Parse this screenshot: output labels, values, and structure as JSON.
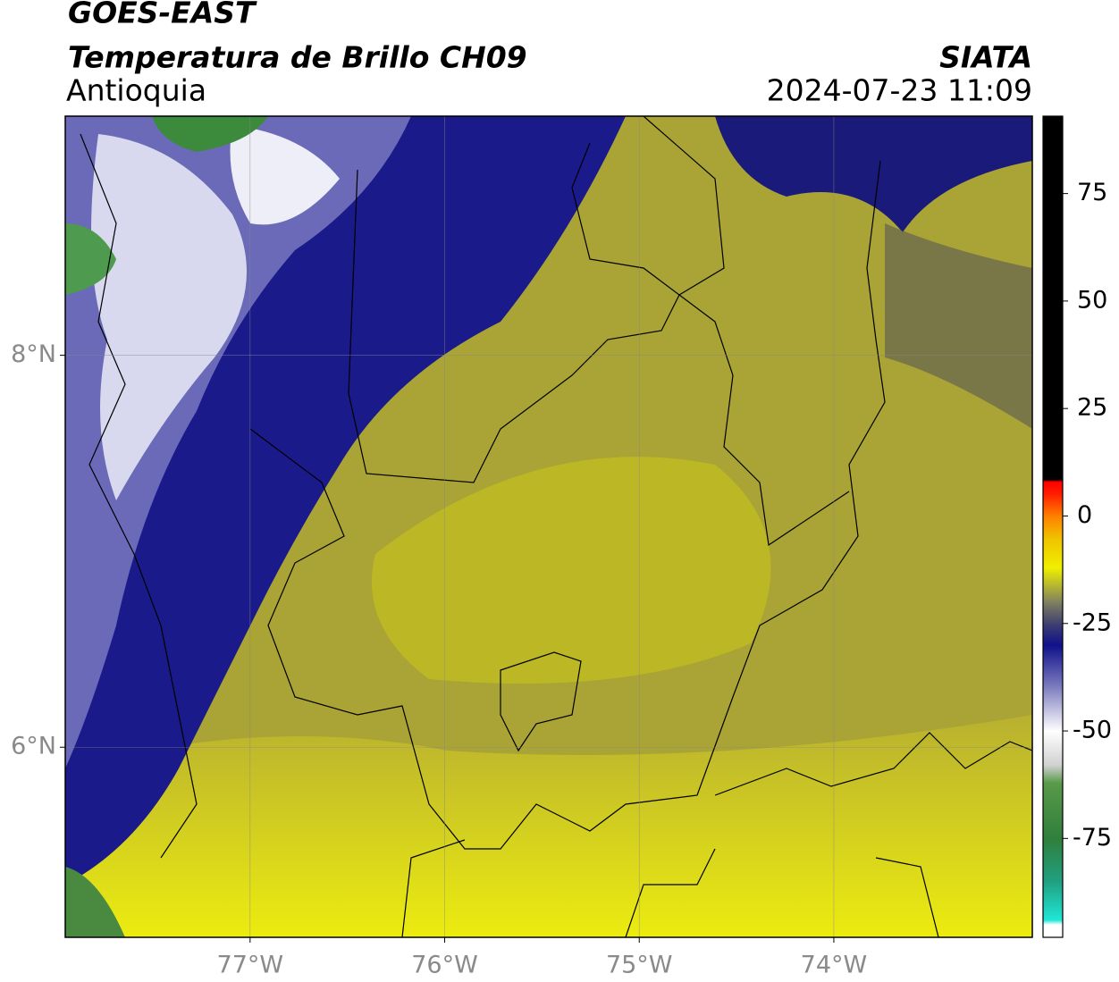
{
  "chart_data": {
    "type": "map",
    "title": "GOES-EAST",
    "subtitle": "Temperatura de Brillo CH09",
    "region": "Antioquia",
    "source": "SIATA",
    "timestamp": "2024-07-23 11:09",
    "xlim": [
      -77.95,
      -72.98
    ],
    "ylim": [
      5.03,
      9.22
    ],
    "xticks": [
      {
        "value": -77,
        "label": "77°W"
      },
      {
        "value": -76,
        "label": "76°W"
      },
      {
        "value": -75,
        "label": "75°W"
      },
      {
        "value": -74,
        "label": "74°W"
      }
    ],
    "yticks": [
      {
        "value": 6,
        "label": "6°N"
      },
      {
        "value": 8,
        "label": "8°N"
      }
    ],
    "grid": true,
    "colorbar": {
      "lim": [
        -98,
        93
      ],
      "ticks": [
        -75,
        -50,
        -25,
        0,
        25,
        50,
        75
      ],
      "stops": [
        {
          "value": -98,
          "color": "#ffffff"
        },
        {
          "value": -95,
          "color": "#ffffff"
        },
        {
          "value": -94,
          "color": "#20e8d8"
        },
        {
          "value": -85,
          "color": "#20a080"
        },
        {
          "value": -75,
          "color": "#2f7f3c"
        },
        {
          "value": -62,
          "color": "#5a9a4a"
        },
        {
          "value": -58,
          "color": "#d0d0d0"
        },
        {
          "value": -50,
          "color": "#ffffff"
        },
        {
          "value": -40,
          "color": "#8080c0"
        },
        {
          "value": -30,
          "color": "#10108a"
        },
        {
          "value": -25,
          "color": "#404070"
        },
        {
          "value": -20,
          "color": "#808060"
        },
        {
          "value": -12,
          "color": "#f0f000"
        },
        {
          "value": -5,
          "color": "#f0c000"
        },
        {
          "value": 0,
          "color": "#ff8000"
        },
        {
          "value": 5,
          "color": "#ff2000"
        },
        {
          "value": 8,
          "color": "#ff0000"
        },
        {
          "value": 8.5,
          "color": "#000000"
        },
        {
          "value": 93,
          "color": "#000000"
        }
      ]
    }
  }
}
